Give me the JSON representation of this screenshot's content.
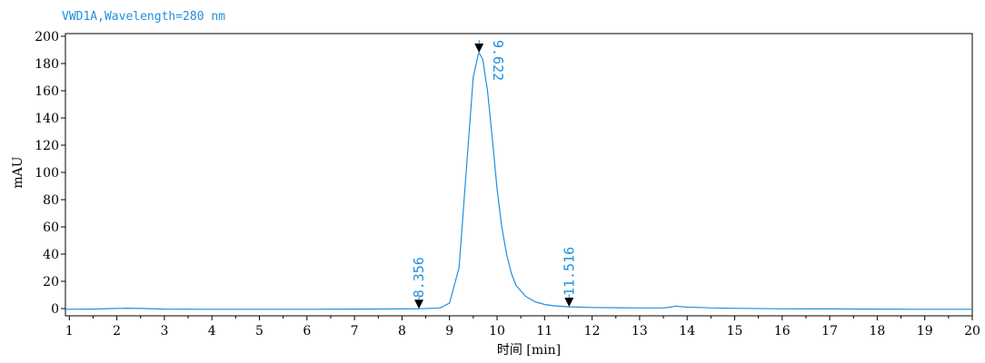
{
  "chart_data": {
    "type": "line",
    "title": "VWD1A,Wavelength=280 nm",
    "xlabel": "时间 [min]",
    "ylabel": "mAU",
    "xlim": [
      0,
      20
    ],
    "ylim": [
      -5,
      202
    ],
    "x_ticks": [
      1,
      2,
      3,
      4,
      5,
      6,
      7,
      8,
      9,
      10,
      11,
      12,
      13,
      14,
      15,
      16,
      17,
      18,
      19,
      20
    ],
    "y_ticks": [
      0,
      20,
      40,
      60,
      80,
      100,
      120,
      140,
      160,
      180,
      200
    ],
    "grid": false,
    "series": [
      {
        "name": "",
        "color": "#1f8fdf",
        "x": [
          0,
          0.5,
          1.5,
          2.2,
          2.5,
          3,
          4,
          5,
          6,
          7,
          8,
          8.356,
          8.8,
          9.0,
          9.2,
          9.35,
          9.5,
          9.6,
          9.622,
          9.7,
          9.8,
          9.9,
          10.0,
          10.1,
          10.2,
          10.3,
          10.4,
          10.6,
          10.8,
          11.0,
          11.2,
          11.516,
          12,
          12.5,
          13,
          13.5,
          13.65,
          13.75,
          14,
          14.3,
          14.5,
          15,
          16,
          17,
          18,
          19,
          20
        ],
        "y": [
          -0.5,
          -0.5,
          -0.4,
          0.3,
          0.1,
          -0.4,
          -0.5,
          -0.5,
          -0.5,
          -0.4,
          -0.3,
          -0.2,
          0.5,
          4,
          30,
          100,
          170,
          186,
          188,
          183,
          160,
          125,
          88,
          60,
          40,
          26,
          17,
          9,
          5,
          3,
          2,
          1.3,
          0.8,
          0.6,
          0.5,
          0.5,
          1.0,
          1.8,
          1.0,
          0.8,
          0.5,
          0.2,
          -0.2,
          -0.3,
          -0.4,
          -0.5,
          -0.5
        ]
      }
    ],
    "peak_markers": [
      {
        "x": 8.356,
        "y": -0.2,
        "label": "8.356"
      },
      {
        "x": 9.622,
        "y": 188,
        "label": "9.622"
      },
      {
        "x": 11.516,
        "y": 1.3,
        "label": "11.516"
      }
    ],
    "colors": {
      "trace": "#1f8fdf",
      "axis": "#000000",
      "marker": "#000000"
    }
  }
}
